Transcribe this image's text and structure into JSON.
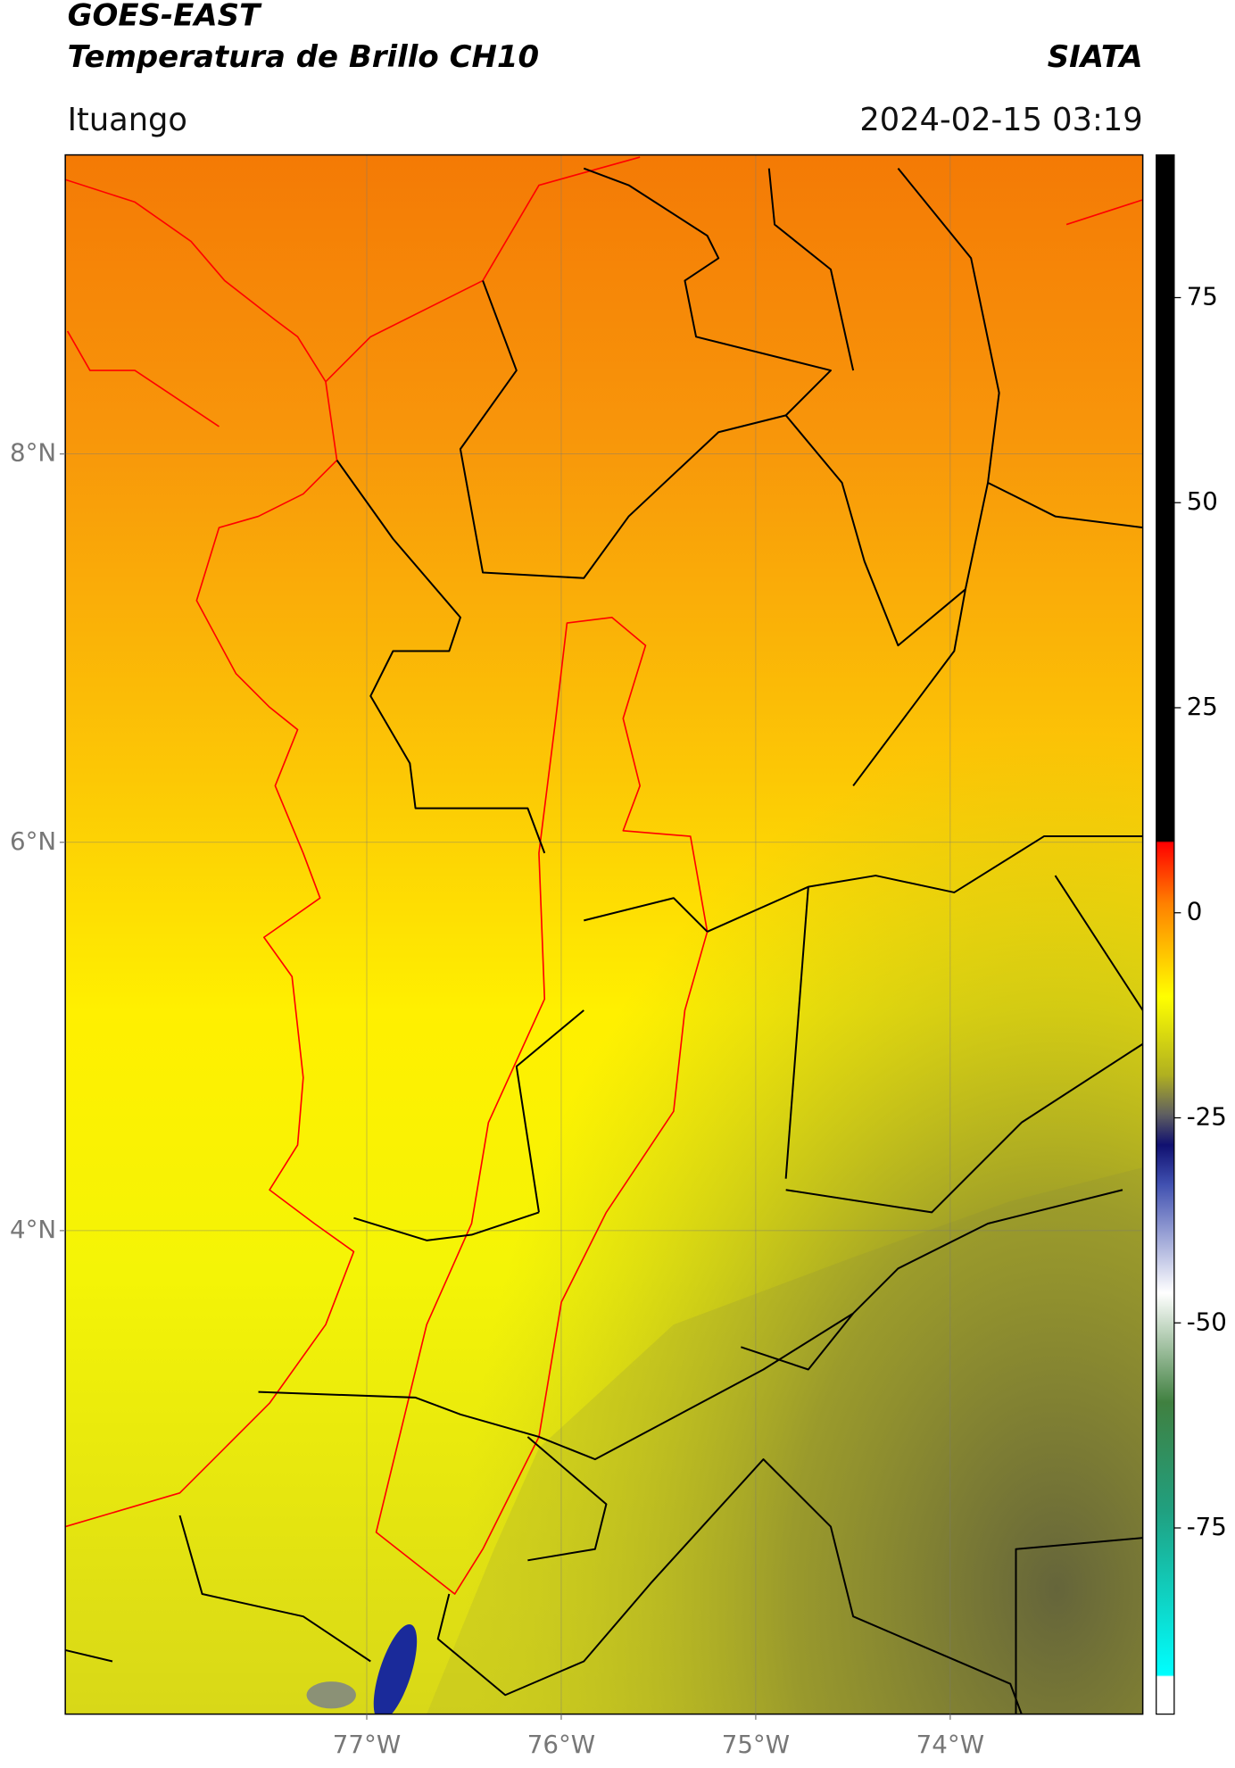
{
  "header": {
    "title": "GOES-EAST",
    "subtitle": "Temperatura de Brillo CH10",
    "source": "SIATA",
    "location": "Ituango",
    "timestamp": "2024-02-15 03:19"
  },
  "map": {
    "xlim": [
      -78.55,
      -73.01
    ],
    "ylim": [
      1.51,
      9.54
    ],
    "xticks": [
      {
        "value": -77,
        "label": "77°W"
      },
      {
        "value": -76,
        "label": "76°W"
      },
      {
        "value": -75,
        "label": "75°W"
      },
      {
        "value": -74,
        "label": "74°W"
      }
    ],
    "yticks": [
      {
        "value": 8,
        "label": "8°N"
      },
      {
        "value": 6,
        "label": "6°N"
      },
      {
        "value": 4,
        "label": "4°N"
      }
    ]
  },
  "colorbar": {
    "lim": [
      -97.7,
      92.4
    ],
    "ticks": [
      75,
      50,
      25,
      0,
      -25,
      -50,
      -75
    ]
  }
}
